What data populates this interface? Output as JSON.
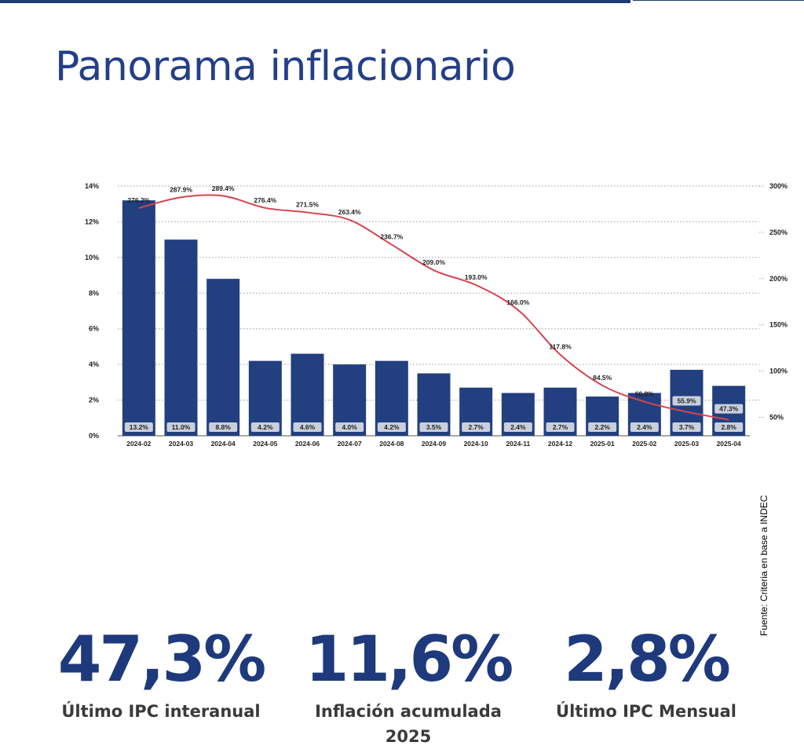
{
  "page": {
    "title": "Panorama inflacionario",
    "source": "Fuente: Criteria en base a INDEC"
  },
  "colors": {
    "brand": "#1f3b75",
    "bar": "#223f7f",
    "line": "#d64550",
    "label_bg": "#c9d0dc"
  },
  "chart_data": {
    "type": "bar",
    "categories": [
      "2024-02",
      "2024-03",
      "2024-04",
      "2024-05",
      "2024-06",
      "2024-07",
      "2024-08",
      "2024-09",
      "2024-10",
      "2024-11",
      "2024-12",
      "2025-01",
      "2025-02",
      "2025-03",
      "2025-04"
    ],
    "series": [
      {
        "axis": "left",
        "type": "bar",
        "values": [
          13.2,
          11.0,
          8.8,
          4.2,
          4.6,
          4.0,
          4.2,
          3.5,
          2.7,
          2.4,
          2.7,
          2.2,
          2.4,
          3.7,
          2.8
        ],
        "labels": [
          "13.2%",
          "11.0%",
          "8.8%",
          "4.2%",
          "4.6%",
          "4.0%",
          "4.2%",
          "3.5%",
          "2.7%",
          "2.4%",
          "2.7%",
          "2.2%",
          "2.4%",
          "3.7%",
          "2.8%"
        ]
      },
      {
        "axis": "right",
        "type": "line",
        "values": [
          276.2,
          287.9,
          289.4,
          276.4,
          271.5,
          263.4,
          236.7,
          209.0,
          193.0,
          166.0,
          117.8,
          84.5,
          66.9,
          55.9,
          47.3
        ],
        "labels": [
          "276.2%",
          "287.9%",
          "289.4%",
          "276.4%",
          "271.5%",
          "263.4%",
          "236.7%",
          "209.0%",
          "193.0%",
          "166.0%",
          "117.8%",
          "84.5%",
          "66.9%",
          "55.9%",
          "47.3%"
        ]
      }
    ],
    "y_left": {
      "min": 0,
      "max": 14,
      "ticks": [
        0,
        2,
        4,
        6,
        8,
        10,
        12,
        14
      ],
      "tick_labels": [
        "0%",
        "2%",
        "4%",
        "6%",
        "8%",
        "10%",
        "12%",
        "14%"
      ]
    },
    "y_right": {
      "min": 30,
      "max": 300,
      "ticks": [
        50,
        100,
        150,
        200,
        250,
        300
      ],
      "tick_labels": [
        "50%",
        "100%",
        "150%",
        "200%",
        "250%",
        "300%"
      ]
    },
    "grid": true,
    "legend": "none"
  },
  "kpis": [
    {
      "value": "47,3%",
      "label": "Último IPC interanual"
    },
    {
      "value": "11,6%",
      "label": "Inflación acumulada 2025"
    },
    {
      "value": "2,8%",
      "label": "Último IPC Mensual"
    }
  ]
}
